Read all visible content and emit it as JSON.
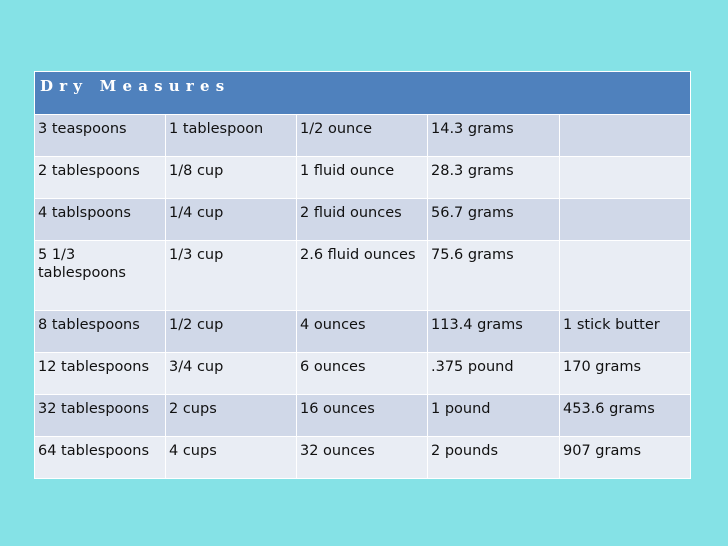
{
  "title": "Dry Measures",
  "rows": [
    [
      "3 teaspoons",
      "1 tablespoon",
      "1/2 ounce",
      "14.3 grams",
      ""
    ],
    [
      "2 tablespoons",
      "1/8 cup",
      "1 fluid ounce",
      "28.3 grams",
      ""
    ],
    [
      "4 tablspoons",
      "1/4 cup",
      "2 fluid ounces",
      "56.7 grams",
      ""
    ],
    [
      "5 1/3 tablespoons",
      "1/3 cup",
      "2.6 fluid ounces",
      "75.6 grams",
      ""
    ],
    [
      "8 tablespoons",
      "1/2 cup",
      "4 ounces",
      "113.4 grams",
      "1 stick butter"
    ],
    [
      "12 tablespoons",
      "3/4 cup",
      "6 ounces",
      ".375 pound",
      "170 grams"
    ],
    [
      "32 tablespoons",
      "2 cups",
      "16 ounces",
      "1 pound",
      "453.6 grams"
    ],
    [
      "64 tablespoons",
      "4 cups",
      "32 ounces",
      "2 pounds",
      "907 grams"
    ]
  ],
  "colors": {
    "background": "#85e2e6",
    "header": "#4f81bd",
    "row_dark": "#d0d8e8",
    "row_light": "#e9edf4"
  }
}
